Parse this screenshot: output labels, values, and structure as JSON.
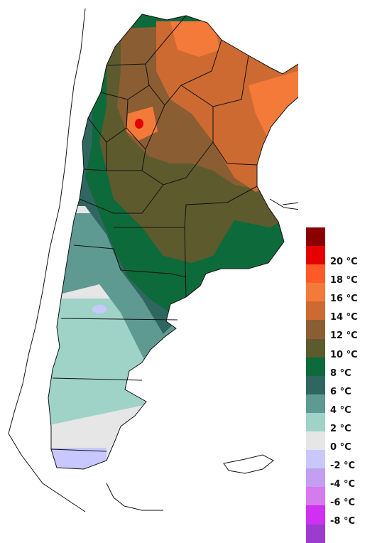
{
  "legend": {
    "unit": "°C",
    "bins": [
      {
        "color": "#8b0000",
        "label": ""
      },
      {
        "color": "#e60000",
        "label": "20 °C"
      },
      {
        "color": "#ff5a28",
        "label": "18 °C"
      },
      {
        "color": "#f47a3a",
        "label": "16 °C"
      },
      {
        "color": "#cd6a32",
        "label": "14 °C"
      },
      {
        "color": "#8a5e32",
        "label": "12 °C"
      },
      {
        "color": "#5d5a2e",
        "label": "10 °C"
      },
      {
        "color": "#0d6a3a",
        "label": "8 °C"
      },
      {
        "color": "#2f6660",
        "label": "6 °C"
      },
      {
        "color": "#5e9a92",
        "label": "4 °C"
      },
      {
        "color": "#9fd3c8",
        "label": "2 °C"
      },
      {
        "color": "#e6e6e6",
        "label": "0 °C"
      },
      {
        "color": "#c8c8ff",
        "label": "-2 °C"
      },
      {
        "color": "#c49ef0",
        "label": "-4 °C"
      },
      {
        "color": "#d67af0",
        "label": "-6 °C"
      },
      {
        "color": "#d030f0",
        "label": "-8 °C"
      },
      {
        "color": "#9b3ccf",
        "label": ""
      }
    ]
  },
  "colors": {
    "background": "#ffffff",
    "borders": "#111111"
  }
}
